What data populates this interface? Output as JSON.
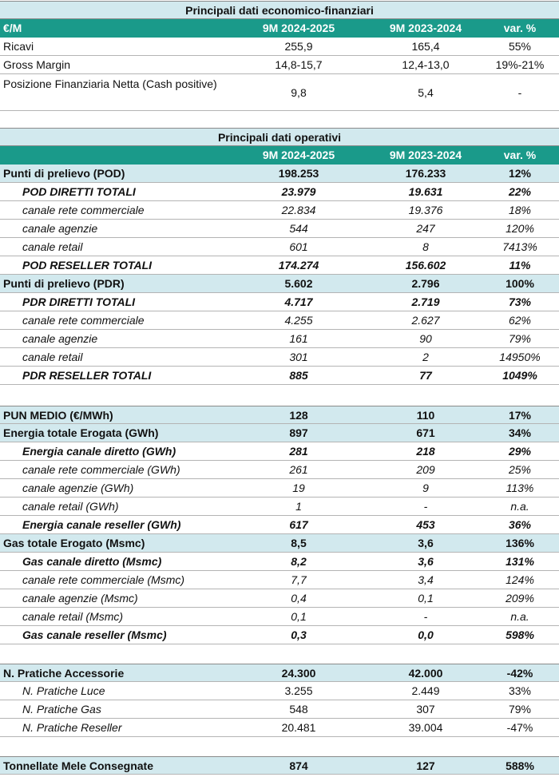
{
  "financial": {
    "title": "Principali dati economico-finanziari",
    "header": [
      "€/M",
      "9M 2024-2025",
      "9M 2023-2024",
      "var. %"
    ],
    "rows": [
      [
        "Ricavi",
        "255,9",
        "165,4",
        "55%"
      ],
      [
        "Gross Margin",
        "14,8-15,7",
        "12,4-13,0",
        "19%-21%"
      ],
      [
        "Posizione Finanziaria Netta (Cash positive)",
        "9,8",
        "5,4",
        "-"
      ]
    ]
  },
  "operative": {
    "title": "Principali dati operativi",
    "header": [
      "",
      "9M 2024-2025",
      "9M 2023-2024",
      "var. %"
    ],
    "pod": [
      [
        "Punti di prelievo (POD)",
        "198.253",
        "176.233",
        "12%"
      ],
      [
        "POD DIRETTI TOTALI",
        "23.979",
        "19.631",
        "22%"
      ],
      [
        "canale rete commerciale",
        "22.834",
        "19.376",
        "18%"
      ],
      [
        "canale agenzie",
        "544",
        "247",
        "120%"
      ],
      [
        "canale retail",
        "601",
        "8",
        "7413%"
      ],
      [
        "POD RESELLER TOTALI",
        "174.274",
        "156.602",
        "11%"
      ]
    ],
    "pdr": [
      [
        "Punti di prelievo (PDR)",
        "5.602",
        "2.796",
        "100%"
      ],
      [
        "PDR DIRETTI TOTALI",
        "4.717",
        "2.719",
        "73%"
      ],
      [
        "canale rete commerciale",
        "4.255",
        "2.627",
        "62%"
      ],
      [
        "canale agenzie",
        "161",
        "90",
        "79%"
      ],
      [
        "canale retail",
        "301",
        "2",
        "14950%"
      ],
      [
        "PDR RESELLER TOTALI",
        "885",
        "77",
        "1049%"
      ]
    ],
    "pun": [
      "PUN MEDIO (€/MWh)",
      "128",
      "110",
      "17%"
    ],
    "energy": [
      [
        "Energia totale Erogata (GWh)",
        "897",
        "671",
        "34%"
      ],
      [
        "Energia canale diretto (GWh)",
        "281",
        "218",
        "29%"
      ],
      [
        "canale rete commerciale (GWh)",
        "261",
        "209",
        "25%"
      ],
      [
        "canale agenzie (GWh)",
        "19",
        "9",
        "113%"
      ],
      [
        "canale retail (GWh)",
        "1",
        "-",
        "n.a."
      ],
      [
        "Energia canale reseller (GWh)",
        "617",
        "453",
        "36%"
      ]
    ],
    "gas": [
      [
        "Gas totale Erogato (Msmc)",
        "8,5",
        "3,6",
        "136%"
      ],
      [
        "Gas canale diretto (Msmc)",
        "8,2",
        "3,6",
        "131%"
      ],
      [
        "canale rete commerciale (Msmc)",
        "7,7",
        "3,4",
        "124%"
      ],
      [
        "canale agenzie (Msmc)",
        "0,4",
        "0,1",
        "209%"
      ],
      [
        "canale retail (Msmc)",
        "0,1",
        "-",
        "n.a."
      ],
      [
        "Gas canale reseller (Msmc)",
        "0,3",
        "0,0",
        "598%"
      ]
    ],
    "pratiche": [
      [
        "N. Pratiche Accessorie",
        "24.300",
        "42.000",
        "-42%"
      ],
      [
        "N. Pratiche Luce",
        "3.255",
        "2.449",
        "33%"
      ],
      [
        "N. Pratiche Gas",
        "548",
        "307",
        "79%"
      ],
      [
        "N. Pratiche Reseller",
        "20.481",
        "39.004",
        "-47%"
      ]
    ],
    "mele": [
      "Tonnellate Mele Consegnate",
      "874",
      "127",
      "588%"
    ]
  }
}
